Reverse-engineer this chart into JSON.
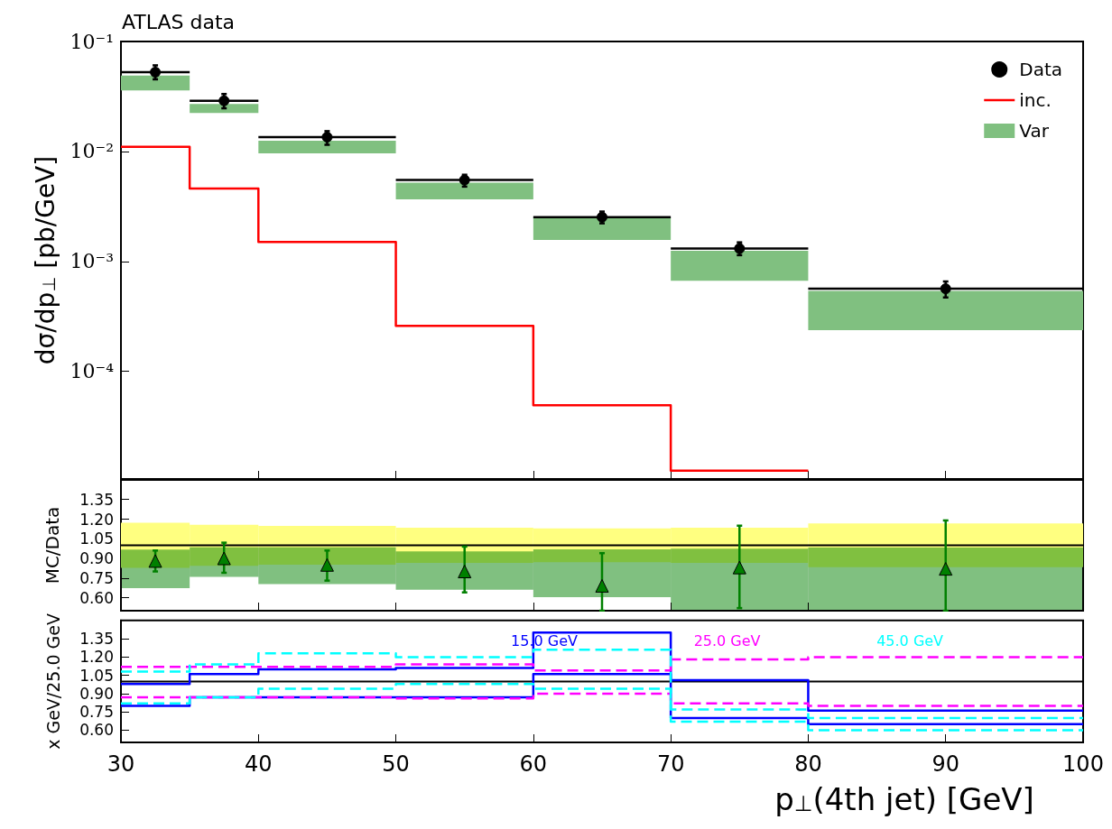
{
  "chart_data": [
    {
      "type": "step",
      "title": "ATLAS data",
      "ylabel": "dσ/dp$_{⊥}$ [pb/GeV]",
      "log": "y",
      "xlim": [
        30,
        100
      ],
      "xticks": [
        30,
        40,
        50,
        60,
        70,
        80,
        90,
        100
      ],
      "ylim": [
        1.05e-05,
        0.1
      ],
      "yticks": [
        {
          "value": 0.0001,
          "label": "10⁻⁴"
        },
        {
          "value": 0.001,
          "label": "10⁻³"
        },
        {
          "value": 0.01,
          "label": "10⁻²"
        },
        {
          "value": 0.1,
          "label": "10⁻¹"
        }
      ],
      "tick_labels": "y",
      "legend": "top right",
      "series": [
        {
          "name": "Data",
          "type": "scatter",
          "marker": "circle",
          "color": "#000000",
          "x": [
            32.5,
            37.5,
            45,
            55,
            65,
            75,
            90
          ],
          "values": [
            0.0526,
            0.0289,
            0.0135,
            0.0055,
            0.00253,
            0.00131,
            0.000564
          ],
          "errors": [
            [
              0.0453,
              0.0607
            ],
            [
              0.0247,
              0.0333
            ],
            [
              0.0115,
              0.0153
            ],
            [
              0.00479,
              0.00614
            ],
            [
              0.00222,
              0.00284
            ],
            [
              0.00114,
              0.00149
            ],
            [
              0.00047,
              0.000657
            ]
          ],
          "xerrors": [
            2.5,
            2.5,
            5,
            5,
            5,
            5,
            10
          ]
        },
        {
          "name": "inc.",
          "color": "#ff0000",
          "x": [
            30,
            35,
            40,
            50,
            60,
            70,
            80
          ],
          "values": [
            0.011,
            0.00461,
            0.0015,
            0.000259,
            4.93e-05,
            1.25e-05,
            1.25e-05
          ]
        },
        {
          "name": "Var",
          "type": "histogram",
          "color": "#80c080",
          "bins": [
            30,
            35,
            40,
            50,
            60,
            70,
            80,
            100
          ],
          "base": [
            0.0359,
            0.0224,
            0.0096,
            0.00366,
            0.00157,
            0.000667,
            0.000237
          ],
          "values": [
            0.0131,
            0.0046,
            0.0029,
            0.00154,
            0.00093,
            0.000583,
            0.000303
          ]
        }
      ]
    },
    {
      "type": "histogram",
      "ylabel": "MC/Data",
      "xlim": [
        30,
        100
      ],
      "xticks": [
        30,
        40,
        50,
        60,
        70,
        80,
        90,
        100
      ],
      "ylim": [
        0.5,
        1.5
      ],
      "yticks": [
        {
          "value": 0.6,
          "label": "0.60"
        },
        0.75,
        {
          "value": 0.9,
          "label": "0.90"
        },
        1.05,
        {
          "value": 1.2,
          "label": "1.20"
        },
        1.35
      ],
      "tick_labels": "y",
      "ref_lines": [
        {
          "axis": "y",
          "value": 1,
          "color": "#000000"
        }
      ],
      "series": [
        {
          "color": "#ffff80",
          "bins": [
            30,
            35,
            40,
            50,
            60,
            70,
            80,
            100
          ],
          "base": [
            0.827,
            0.843,
            0.851,
            0.865,
            0.87,
            0.865,
            0.832
          ],
          "values": [
            0.346,
            0.314,
            0.298,
            0.27,
            0.26,
            0.27,
            0.336
          ]
        },
        {
          "color": "#80c080",
          "bins": [
            30,
            35,
            40,
            50,
            60,
            70,
            80,
            100
          ],
          "base": [
            0.673,
            0.758,
            0.704,
            0.66,
            0.604,
            0.5,
            0.5
          ],
          "values": [
            0.294,
            0.227,
            0.281,
            0.293,
            0.365,
            0.475,
            0.483
          ]
        },
        {
          "type": "scatter",
          "marker": "triangle",
          "color": "#008000",
          "x": [
            32.5,
            37.5,
            45,
            55,
            65,
            75,
            90
          ],
          "values": [
            0.88,
            0.9,
            0.85,
            0.8,
            0.69,
            0.83,
            0.82
          ],
          "errors": [
            [
              0.8,
              0.96
            ],
            [
              0.79,
              1.02
            ],
            [
              0.73,
              0.96
            ],
            [
              0.64,
              0.99
            ],
            [
              0.5,
              0.94
            ],
            [
              0.52,
              1.15
            ],
            [
              0.5,
              1.19
            ]
          ]
        }
      ]
    },
    {
      "type": "step",
      "xlabel": "p$_{⊥}$(4th jet) [GeV]",
      "ylabel": "x GeV/25.0 GeV",
      "xlim": [
        30,
        100
      ],
      "xticks": [
        30,
        40,
        50,
        60,
        70,
        80,
        90,
        100
      ],
      "ylim": [
        0.5,
        1.5
      ],
      "yticks": [
        {
          "value": 0.6,
          "label": "0.60"
        },
        0.75,
        {
          "value": 0.9,
          "label": "0.90"
        },
        1.05,
        {
          "value": 1.2,
          "label": "1.20"
        },
        1.35
      ],
      "ref_lines": [
        {
          "axis": "y",
          "value": 1,
          "color": "#000000"
        }
      ],
      "series": [
        {
          "name": "15.0 GeV",
          "color": "#0000ff",
          "line_style": "solid",
          "x": [
            30,
            35,
            40,
            50,
            60,
            70,
            80,
            100
          ],
          "values": [
            0.98,
            1.06,
            1.1,
            1.11,
            1.4,
            1.01,
            0.76,
            0.76
          ]
        },
        {
          "color": "#0000ff",
          "line_style": "solid",
          "x": [
            30,
            35,
            40,
            50,
            60,
            70,
            80,
            100
          ],
          "values": [
            0.8,
            0.87,
            0.87,
            0.87,
            1.06,
            0.7,
            0.65,
            0.65
          ]
        },
        {
          "name": "25.0 GeV",
          "color": "#ff00ff",
          "line_style": "dashed",
          "x": [
            30,
            35,
            40,
            50,
            60,
            70,
            80,
            100
          ],
          "values": [
            1.12,
            1.12,
            1.12,
            1.14,
            1.09,
            1.18,
            1.2,
            1.2
          ]
        },
        {
          "color": "#ff00ff",
          "line_style": "dashed",
          "x": [
            30,
            35,
            40,
            50,
            60,
            70,
            80,
            100
          ],
          "values": [
            0.87,
            0.87,
            0.87,
            0.86,
            0.9,
            0.82,
            0.8,
            0.8
          ]
        },
        {
          "name": "45.0 GeV",
          "color": "#00ffff",
          "line_style": "dashed",
          "x": [
            30,
            35,
            40,
            50,
            60,
            70,
            80,
            100
          ],
          "values": [
            1.08,
            1.14,
            1.23,
            1.2,
            1.26,
            0.77,
            0.7,
            0.7
          ]
        },
        {
          "color": "#00ffff",
          "line_style": "dashed",
          "x": [
            30,
            35,
            40,
            50,
            60,
            70,
            80,
            100
          ],
          "values": [
            0.82,
            0.87,
            0.94,
            0.98,
            0.94,
            0.67,
            0.6,
            0.6
          ]
        }
      ]
    }
  ]
}
